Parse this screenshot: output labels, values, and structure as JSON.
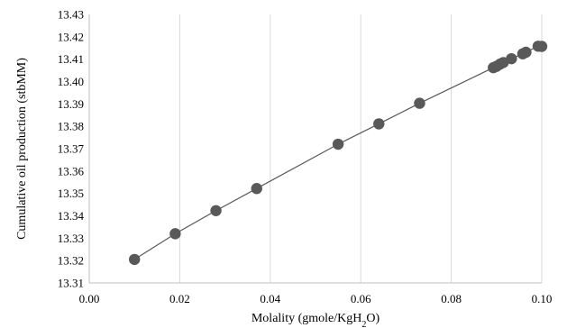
{
  "chart_data": {
    "type": "scatter",
    "title": "",
    "xlabel_parts": [
      "Molality (gmole/KgH",
      "2",
      "O)"
    ],
    "ylabel": "Cumulative oil production (stbMM)",
    "xlim": [
      0.0,
      0.1
    ],
    "ylim": [
      13.31,
      13.43
    ],
    "x_ticks": [
      "0.00",
      "0.02",
      "0.04",
      "0.06",
      "0.08",
      "0.10"
    ],
    "y_ticks": [
      "13.31",
      "13.32",
      "13.33",
      "13.34",
      "13.35",
      "13.36",
      "13.37",
      "13.38",
      "13.39",
      "13.40",
      "13.41",
      "13.42",
      "13.43"
    ],
    "grid": "vertical",
    "legend": "none",
    "trendline": true,
    "colors": {
      "marker": "#595959",
      "line": "#595959",
      "grid": "#d9d9d9"
    },
    "series": [
      {
        "x": [
          0.01,
          0.019,
          0.028,
          0.037,
          0.055,
          0.064,
          0.073,
          0.0893,
          0.09,
          0.0908,
          0.0915,
          0.0933,
          0.0958,
          0.0965,
          0.0992,
          0.1
        ],
        "y": [
          13.3205,
          13.332,
          13.3423,
          13.3522,
          13.372,
          13.3811,
          13.3903,
          13.4062,
          13.4068,
          13.4078,
          13.4085,
          13.4102,
          13.4124,
          13.4131,
          13.4158,
          13.4157
        ]
      }
    ]
  }
}
